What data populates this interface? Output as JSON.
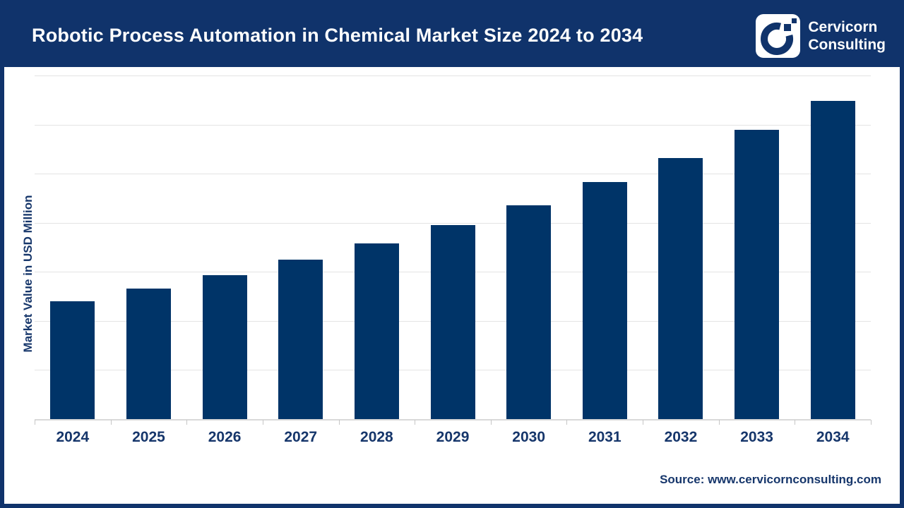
{
  "header": {
    "title": "Robotic Process Automation in Chemical Market Size 2024 to 2034",
    "brand_line1": "Cervicorn",
    "brand_line2": "Consulting"
  },
  "chart_data": {
    "type": "bar",
    "title": "Robotic Process Automation in Chemical Market Size 2024 to 2034",
    "categories": [
      "2024",
      "2025",
      "2026",
      "2027",
      "2028",
      "2029",
      "2030",
      "2031",
      "2032",
      "2033",
      "2034"
    ],
    "values": [
      241,
      267,
      295,
      326,
      359,
      397,
      437,
      484,
      533,
      591,
      650
    ],
    "series_name": "Market Value in USD Million",
    "xlabel": "",
    "ylabel": "Market Value in USD Million",
    "ylim": [
      0,
      700
    ],
    "gridline_step": 100,
    "grid": "horizontal",
    "legend": "none",
    "y_tick_labels_visible": false,
    "bar_color": "#003468"
  },
  "footer": {
    "source": "Source: www.cervicornconsulting.com"
  },
  "colors": {
    "navy_header": "#10336b",
    "bar_fill": "#003468",
    "text_navy": "#16366b",
    "gridline": "#e4e4e4",
    "axis_line": "#d9d9d9",
    "background": "#ffffff"
  }
}
